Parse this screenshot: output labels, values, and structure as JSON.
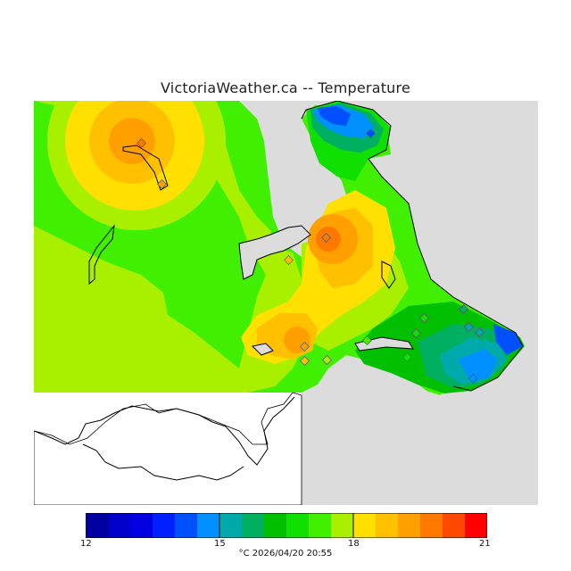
{
  "header": {
    "title": "VictoriaWeather.ca -- Temperature"
  },
  "legend": {
    "colors": [
      "#0000a0",
      "#0000c8",
      "#0000e0",
      "#0020ff",
      "#0050ff",
      "#0090ff",
      "#00aaaa",
      "#00b060",
      "#00c000",
      "#10e000",
      "#40f000",
      "#a8f000",
      "#ffe000",
      "#ffc000",
      "#ffa000",
      "#ff7800",
      "#ff4800",
      "#ff0000"
    ],
    "ticks": [
      "12",
      "15",
      "18",
      "21"
    ],
    "tick_values": [
      12,
      15,
      18,
      21
    ],
    "range": [
      12,
      21
    ],
    "unit_date": "°C  2026/04/20 20:55"
  },
  "colors": {
    "water": "#dcdcdc",
    "no_data": "#ffffff",
    "station": "#cc4444",
    "coast": "#000000"
  }
}
